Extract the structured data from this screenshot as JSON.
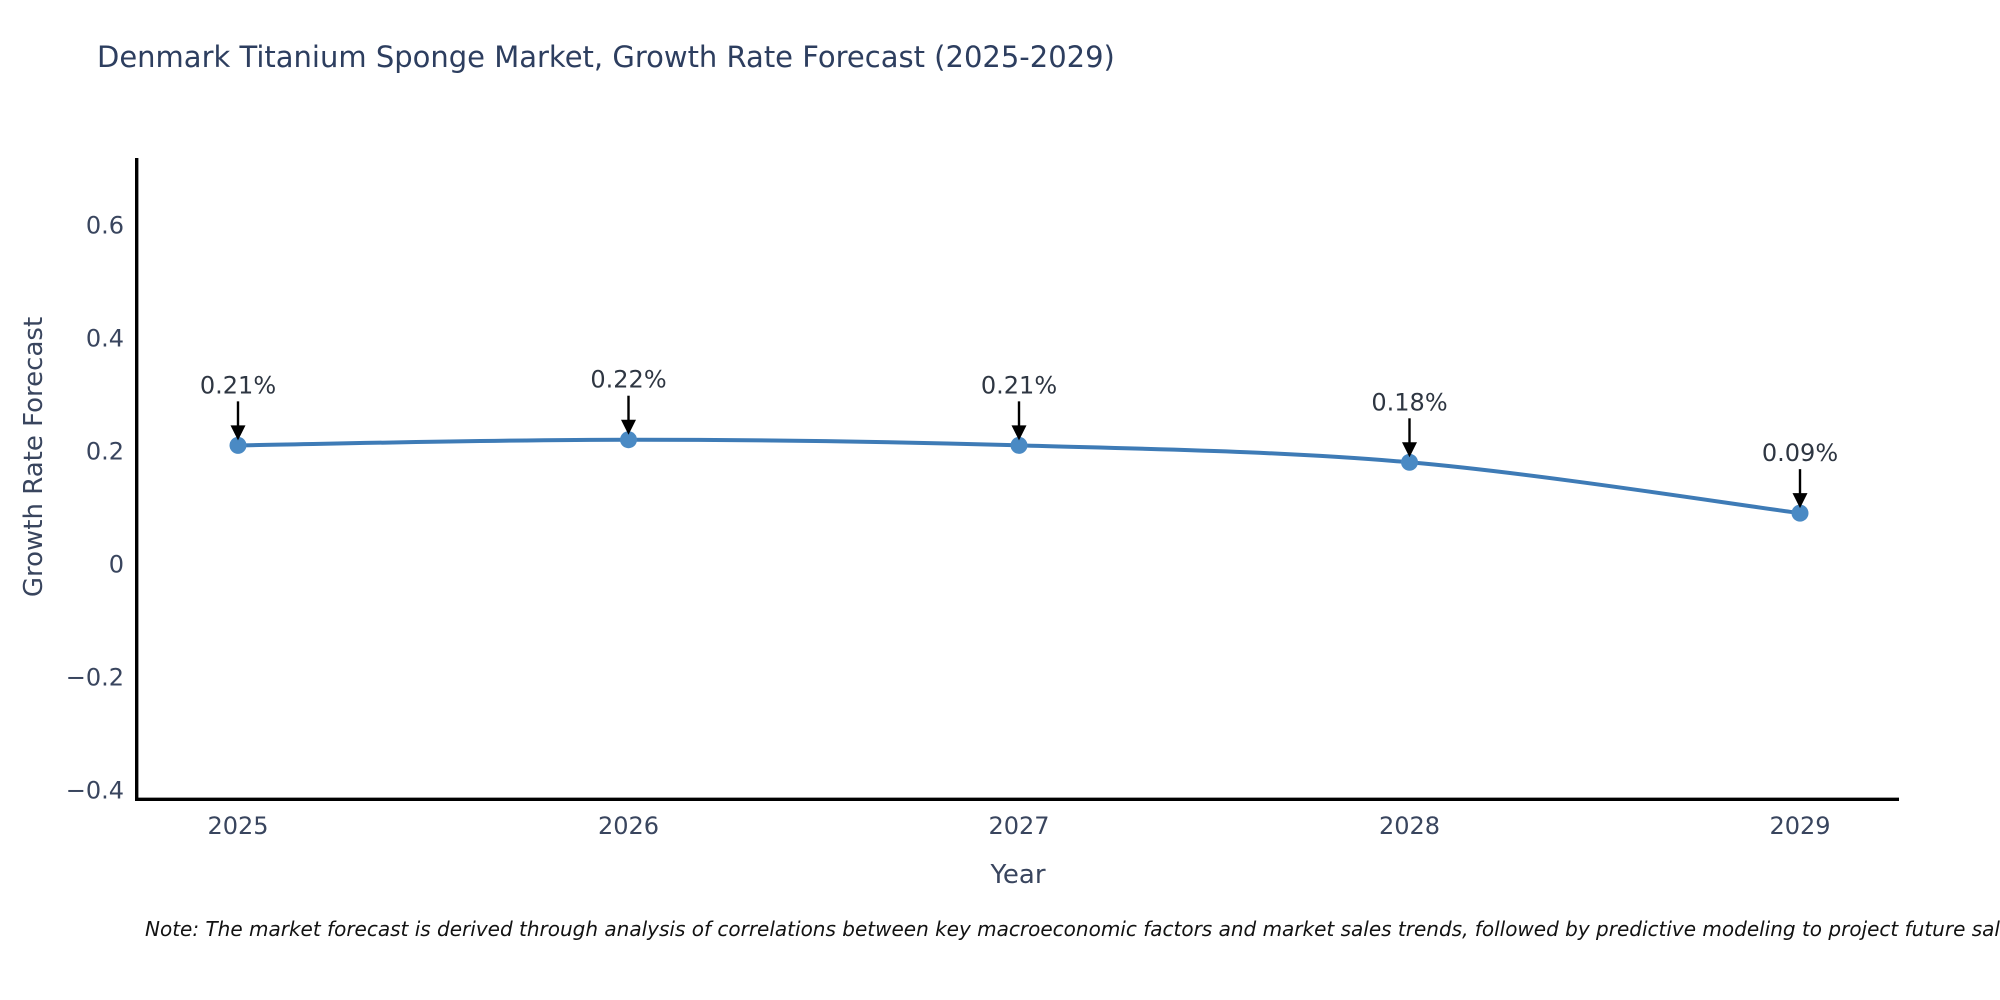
{
  "title": "Denmark Titanium Sponge Market, Growth Rate Forecast (2025-2029)",
  "note": "Note: The market forecast is derived through analysis of correlations between key macroeconomic factors and market sales trends, followed by predictive modeling to project future sales.",
  "chart_data": {
    "type": "line",
    "title": "Denmark Titanium Sponge Market, Growth Rate Forecast (2025-2029)",
    "xlabel": "Year",
    "ylabel": "Growth Rate Forecast",
    "x": [
      2025,
      2026,
      2027,
      2028,
      2029
    ],
    "values": [
      0.21,
      0.22,
      0.21,
      0.18,
      0.09
    ],
    "point_labels": [
      "0.21%",
      "0.22%",
      "0.21%",
      "0.18%",
      "0.09%"
    ],
    "x_tick_labels": [
      "2025",
      "2026",
      "2027",
      "2028",
      "2029"
    ],
    "y_ticks": [
      0.6,
      0.4,
      0.2,
      0,
      -0.2,
      -0.4
    ],
    "y_tick_labels": [
      "0.6",
      "0.4",
      "0.2",
      "0",
      "−0.2",
      "−0.4"
    ],
    "ylim": [
      -0.42,
      0.72
    ],
    "grid": false,
    "legend": "none",
    "line_color": "#3e7bb6",
    "marker_color": "#4a8ac4",
    "axis_color": "#000000",
    "annotation_arrow_color": "#000000"
  }
}
